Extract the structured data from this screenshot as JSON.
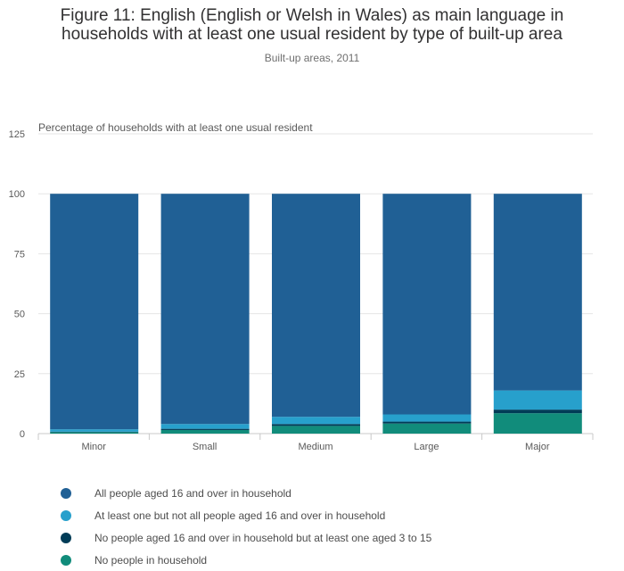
{
  "title_line1": "Figure 11: English (English or Welsh in Wales) as main language in",
  "title_line2": "households with at least one usual resident by type of built-up area",
  "subtitle": "Built-up areas, 2011",
  "colors": {
    "grid": "#e5e5e5",
    "axis": "#c8c8c8",
    "text": "#595959"
  },
  "chart_data": {
    "type": "bar",
    "stacked": true,
    "categories": [
      "Minor",
      "Small",
      "Medium",
      "Large",
      "Major"
    ],
    "ylabel": "Percentage of households with at least one usual resident",
    "ylim": [
      0,
      125
    ],
    "yticks": [
      0,
      25,
      50,
      75,
      100,
      125
    ],
    "grid": true,
    "legend_position": "bottom-left",
    "series": [
      {
        "name": "No people in household",
        "color": "#118c7b",
        "values": [
          0.6,
          1.5,
          3.2,
          4.2,
          8.5
        ]
      },
      {
        "name": "No people aged 16 and over in household but at least one aged 3 to 15",
        "color": "#003c57",
        "values": [
          0.2,
          0.5,
          0.8,
          0.8,
          1.5
        ]
      },
      {
        "name": "At least one but not all people aged 16 and over in household",
        "color": "#27a0cc",
        "values": [
          1.0,
          2.0,
          3.0,
          3.0,
          8.0
        ]
      },
      {
        "name": "All people aged 16 and over in household",
        "color": "#206095",
        "values": [
          98.2,
          96.0,
          93.0,
          92.0,
          82.0
        ]
      }
    ]
  },
  "legend_order": [
    3,
    2,
    1,
    0
  ]
}
